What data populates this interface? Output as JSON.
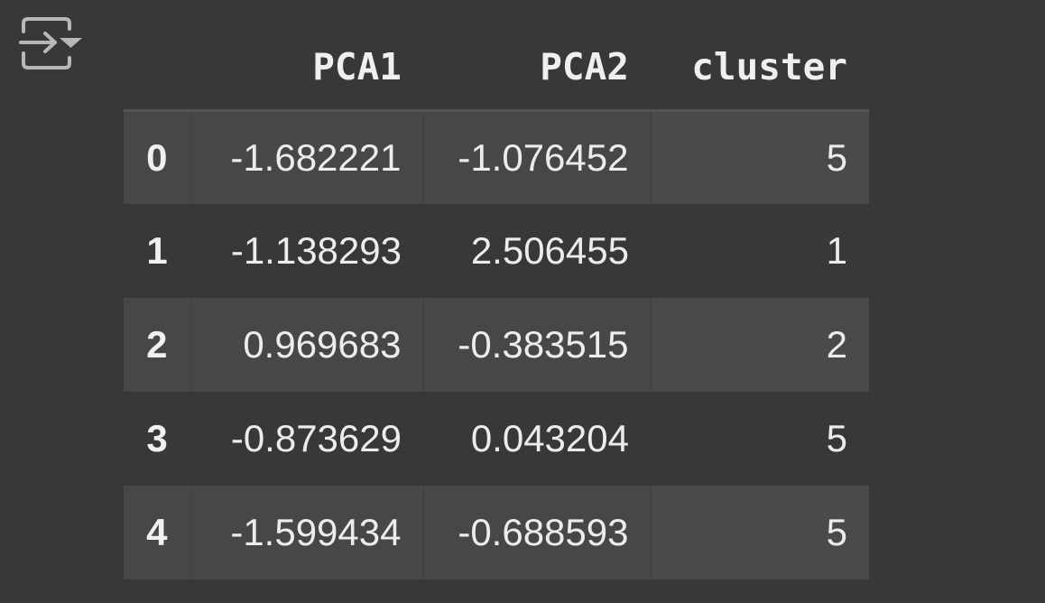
{
  "output_actions": {
    "icon": "output-actions-icon"
  },
  "table": {
    "columns": [
      "",
      "PCA1",
      "PCA2",
      "cluster"
    ],
    "rows": [
      {
        "index": "0",
        "pca1": "-1.682221",
        "pca2": "-1.076452",
        "cluster": "5"
      },
      {
        "index": "1",
        "pca1": "-1.138293",
        "pca2": "2.506455",
        "cluster": "1"
      },
      {
        "index": "2",
        "pca1": "0.969683",
        "pca2": "-0.383515",
        "cluster": "2"
      },
      {
        "index": "3",
        "pca1": "-0.873629",
        "pca2": "0.043204",
        "cluster": "5"
      },
      {
        "index": "4",
        "pca1": "-1.599434",
        "pca2": "-0.688593",
        "cluster": "5"
      }
    ]
  },
  "colors": {
    "background": "#383838",
    "stripe": "#474747",
    "header_rule": "#555555",
    "text": "#ececec"
  }
}
